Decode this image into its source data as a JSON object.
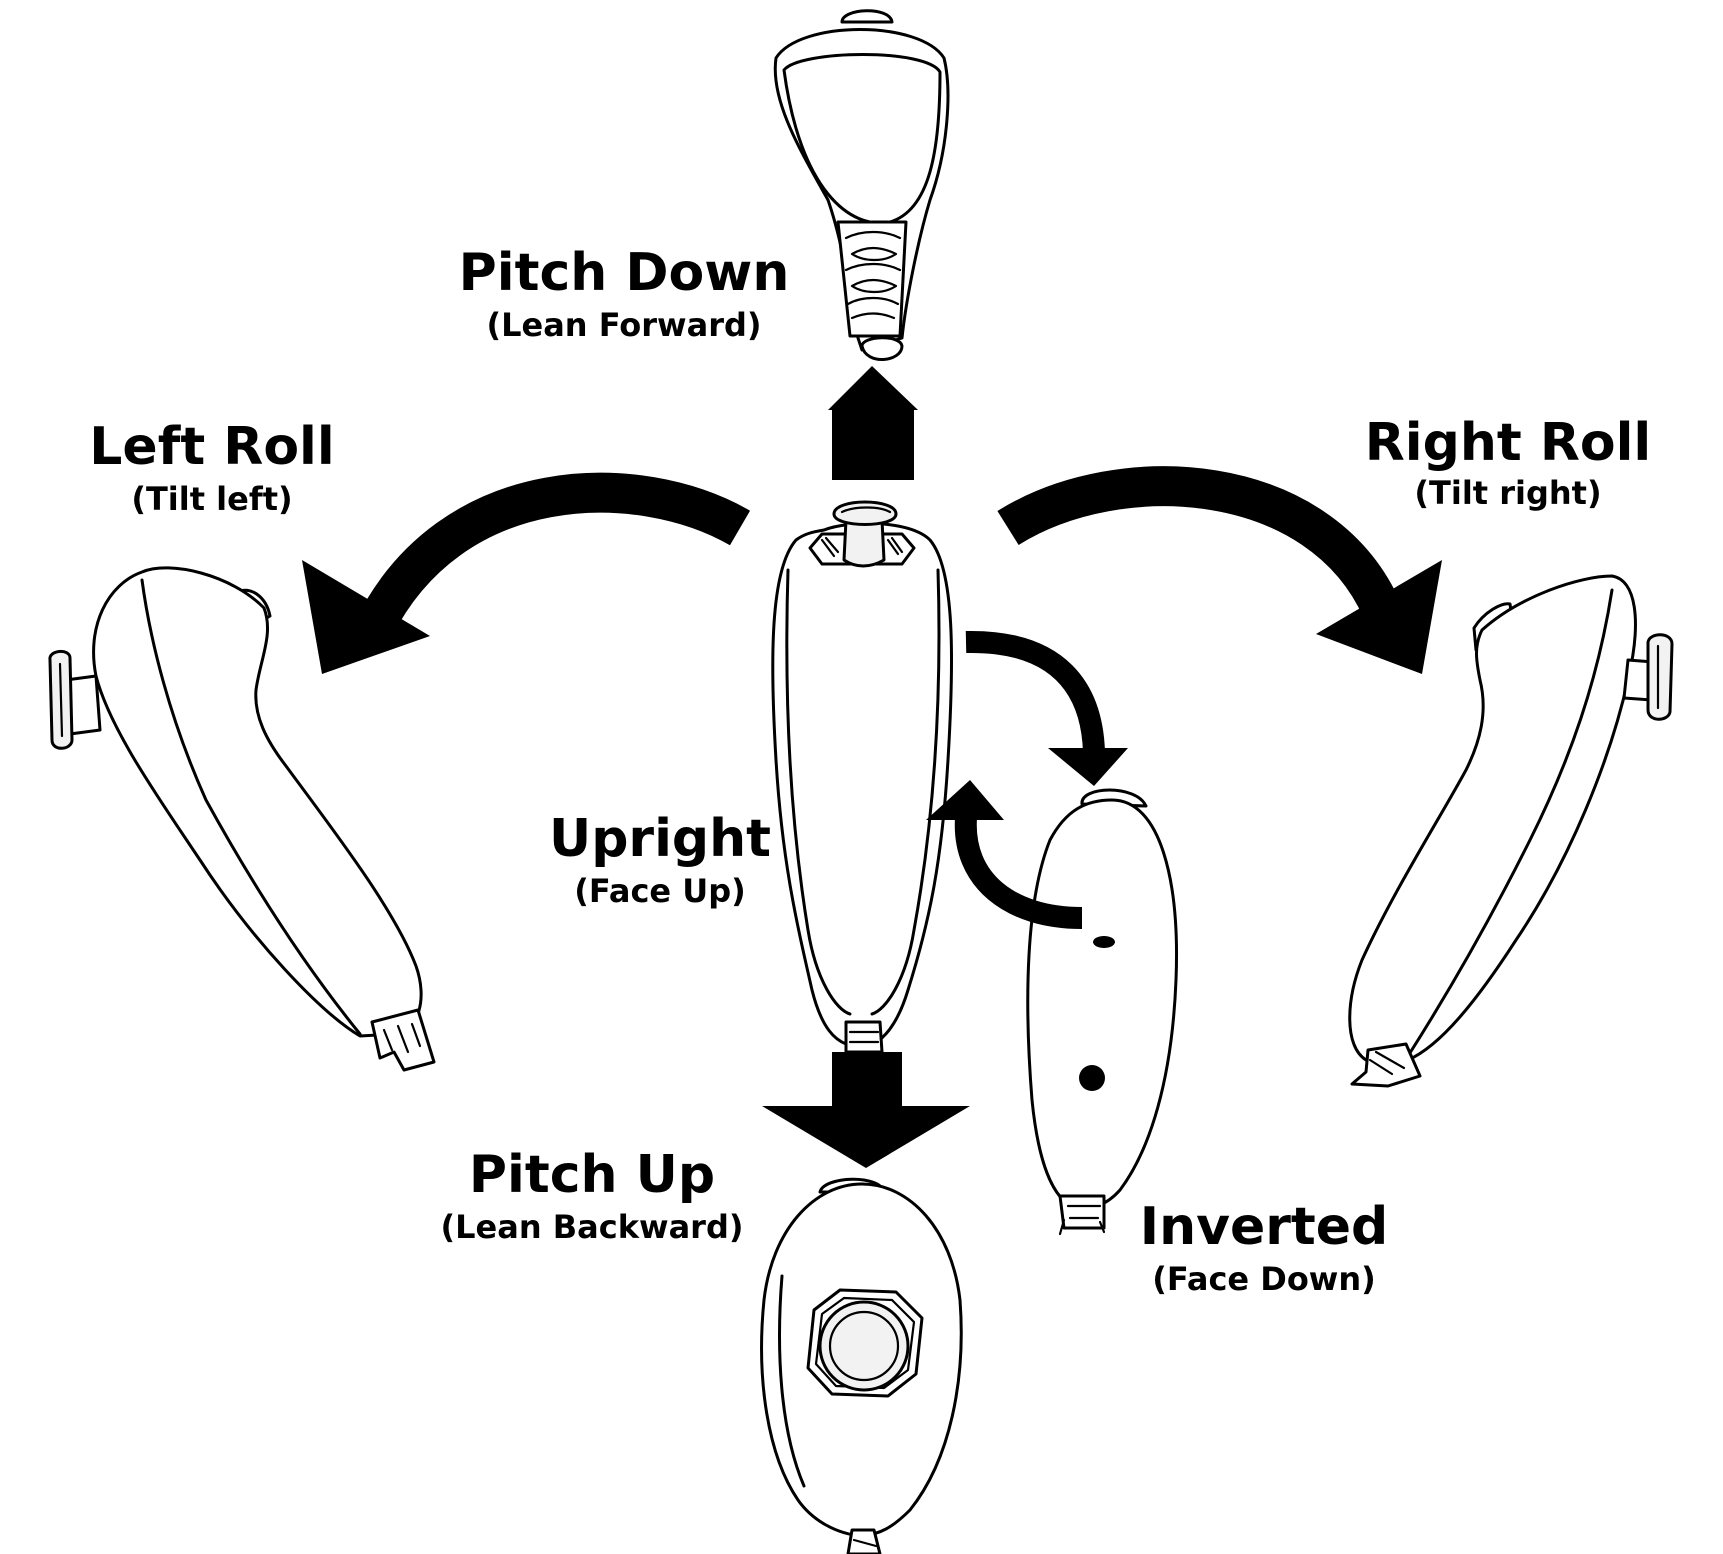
{
  "colors": {
    "ink": "#000000",
    "background": "#ffffff",
    "knob_fill": "#f2f2f2"
  },
  "labels": {
    "pitch_down": {
      "title": "Pitch Down",
      "subtitle": "(Lean Forward)"
    },
    "left_roll": {
      "title": "Left Roll",
      "subtitle": "(Tilt left)"
    },
    "right_roll": {
      "title": "Right Roll",
      "subtitle": "(Tilt right)"
    },
    "upright": {
      "title": "Upright",
      "subtitle": "(Face Up)"
    },
    "pitch_up": {
      "title": "Pitch Up",
      "subtitle": "(Lean Backward)"
    },
    "inverted": {
      "title": "Inverted",
      "subtitle": "(Face Down)"
    }
  },
  "icons": [
    "nunchuk-controller",
    "curved-arrow",
    "straight-arrow"
  ]
}
